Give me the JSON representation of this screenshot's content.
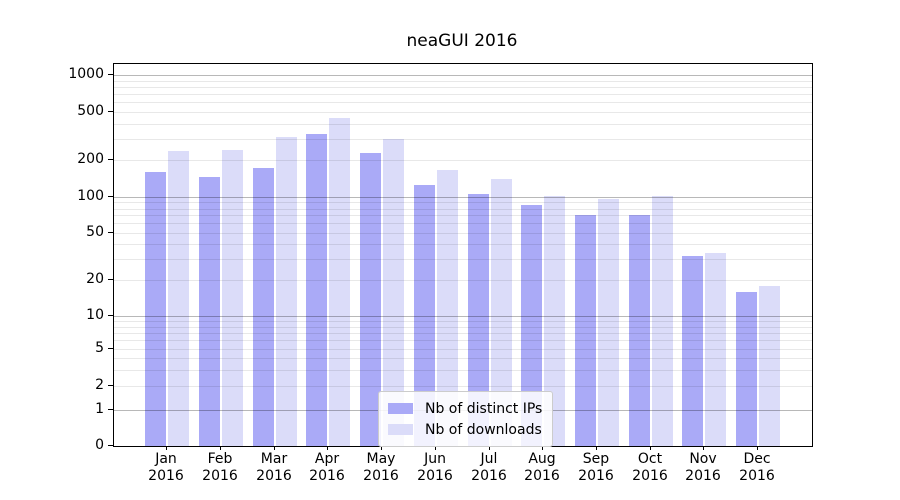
{
  "chart_data": {
    "type": "bar",
    "title": "neaGUI 2016",
    "categories": [
      "Jan",
      "Feb",
      "Mar",
      "Apr",
      "May",
      "Jun",
      "Jul",
      "Aug",
      "Sep",
      "Oct",
      "Nov",
      "Dec"
    ],
    "category_year": "2016",
    "series": [
      {
        "name": "Nb of distinct IPs",
        "color": "#aaaaf7",
        "values": [
          160,
          145,
          173,
          330,
          230,
          125,
          106,
          86,
          71,
          70,
          32,
          16
        ]
      },
      {
        "name": "Nb of downloads",
        "color": "#dbdcf9",
        "values": [
          240,
          243,
          310,
          440,
          300,
          166,
          140,
          101,
          96,
          102,
          34,
          18
        ]
      }
    ],
    "yticks": [
      0,
      1,
      2,
      5,
      10,
      20,
      50,
      100,
      200,
      500,
      1000
    ],
    "yscale": "symlog",
    "ylim": [
      0,
      1400
    ],
    "xlabel": "",
    "ylabel": "",
    "grid": true,
    "legend_position": "lower center"
  }
}
